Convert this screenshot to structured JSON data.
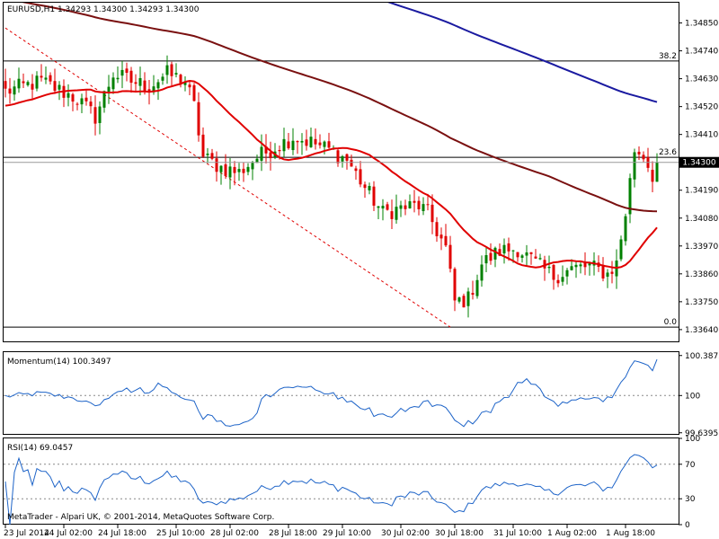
{
  "window": {
    "header": "EURUSD,H1  1.34293 1.34300 1.34293 1.34300",
    "copyright": "MetaTrader - Alpari UK, © 2001-2014, MetaQuotes Software Corp."
  },
  "colors": {
    "bull": "#008000",
    "bear": "#e00000",
    "ma_fast": "#e00000",
    "ma_mid": "#7a1010",
    "ma_slow": "#1a1aa0",
    "fib": "#000000",
    "trend": "#e00000",
    "indicator": "#1e64c8"
  },
  "chart_data": [
    {
      "type": "candlestick",
      "symbol": "EURUSD",
      "timeframe": "H1",
      "quote": {
        "open": "1.34293",
        "high": "1.34300",
        "low": "1.34293",
        "close": "1.34300"
      },
      "ylim": [
        1.3359,
        1.3493
      ],
      "yticks": [
        "1.34850",
        "1.34740",
        "1.34630",
        "1.34520",
        "1.34410",
        "1.34300",
        "1.34190",
        "1.34080",
        "1.33970",
        "1.33860",
        "1.33750",
        "1.33640"
      ],
      "current_price": "1.34300",
      "fibonacci": [
        {
          "label": "38.2",
          "value": 1.347
        },
        {
          "label": "23.6",
          "value": 1.3432
        },
        {
          "label": "0.0",
          "value": 1.3365
        }
      ],
      "xticks": [
        "23 Jul 2014",
        "24 Jul 02:00",
        "24 Jul 18:00",
        "25 Jul 10:00",
        "28 Jul 02:00",
        "28 Jul 18:00",
        "29 Jul 10:00",
        "30 Jul 02:00",
        "30 Jul 18:00",
        "31 Jul 10:00",
        "1 Aug 02:00",
        "1 Aug 18:00"
      ],
      "anchors": [
        [
          0,
          1.3458
        ],
        [
          8,
          1.3462
        ],
        [
          16,
          1.3455
        ],
        [
          20,
          1.3448
        ],
        [
          24,
          1.3465
        ],
        [
          28,
          1.3462
        ],
        [
          32,
          1.346
        ],
        [
          36,
          1.3465
        ],
        [
          40,
          1.3462
        ],
        [
          42,
          1.3452
        ],
        [
          44,
          1.3432
        ],
        [
          48,
          1.3428
        ],
        [
          52,
          1.3426
        ],
        [
          56,
          1.3432
        ],
        [
          60,
          1.3436
        ],
        [
          64,
          1.344
        ],
        [
          68,
          1.3438
        ],
        [
          72,
          1.3435
        ],
        [
          76,
          1.3431
        ],
        [
          80,
          1.342
        ],
        [
          84,
          1.341
        ],
        [
          88,
          1.3412
        ],
        [
          92,
          1.3413
        ],
        [
          94,
          1.341
        ],
        [
          98,
          1.3396
        ],
        [
          100,
          1.3375
        ],
        [
          103,
          1.3376
        ],
        [
          106,
          1.339
        ],
        [
          110,
          1.3395
        ],
        [
          114,
          1.3396
        ],
        [
          118,
          1.339
        ],
        [
          122,
          1.3385
        ],
        [
          126,
          1.3388
        ],
        [
          130,
          1.3389
        ],
        [
          134,
          1.3386
        ],
        [
          136,
          1.339
        ],
        [
          138,
          1.341
        ],
        [
          140,
          1.3435
        ],
        [
          142,
          1.3433
        ],
        [
          144,
          1.3425
        ],
        [
          145,
          1.343
        ]
      ],
      "moving_averages": [
        {
          "period": 20,
          "role": "fast"
        },
        {
          "period": 100,
          "role": "mid"
        },
        {
          "period": 200,
          "role": "slow"
        }
      ]
    },
    {
      "type": "line",
      "title": "Momentum(14) 100.3497",
      "ylim": [
        99.62,
        100.42
      ],
      "yticks": [
        "100.3873",
        "100",
        "99.6395"
      ],
      "reference_level": 100,
      "last_value": 100.3497
    },
    {
      "type": "line",
      "title": "RSI(14) 69.0457",
      "ylim": [
        0,
        100
      ],
      "yticks": [
        "100",
        "70",
        "30",
        "0"
      ],
      "levels": [
        70,
        30
      ],
      "last_value": 69.0457
    }
  ]
}
